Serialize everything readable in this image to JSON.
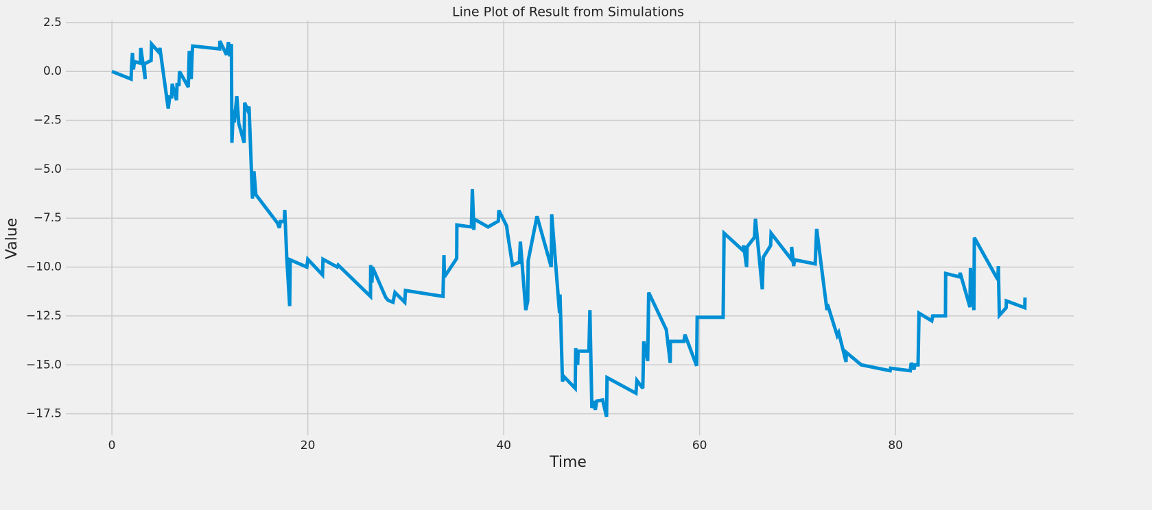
{
  "chart_data": {
    "type": "line",
    "title": "Line Plot of Result from Simulations",
    "xlabel": "Time",
    "ylabel": "Value",
    "color": "#008fd5",
    "grid": true,
    "xlim": [
      -4.7,
      98.2
    ],
    "ylim": [
      -18.6,
      2.6
    ],
    "xticks": [
      0,
      20,
      40,
      60,
      80
    ],
    "yticks": [
      2.5,
      {
        "value": 0,
        "label": "0.0"
      },
      {
        "value": -2.5,
        "label": "−2.5"
      },
      {
        "value": -5,
        "label": "−5.0"
      },
      {
        "value": -7.5,
        "label": "−7.5"
      },
      {
        "value": -10,
        "label": "−10.0"
      },
      {
        "value": -12.5,
        "label": "−12.5"
      },
      {
        "value": -15,
        "label": "−15.0"
      },
      {
        "value": -17.5,
        "label": "−17.5"
      }
    ],
    "x": [
      0,
      1.96,
      2.0,
      2.1,
      2.2,
      2.3,
      2.9,
      2.95,
      3.4,
      3.3,
      4.0,
      4.05,
      4.8,
      4.9,
      5.75,
      5.9,
      6.1,
      6.15,
      6.4,
      6.6,
      6.65,
      6.85,
      6.9,
      7.8,
      7.9,
      8.1,
      8.2,
      8.25,
      11.0,
      11.02,
      11.7,
      11.9,
      12.05,
      12.2,
      12.25,
      12.4,
      12.5,
      12.75,
      12.95,
      13.5,
      13.55,
      13.85,
      14.0,
      14.35,
      14.5,
      14.7,
      16.9,
      17.1,
      17.2,
      17.6,
      17.65,
      17.85,
      18.15,
      18.2,
      19.9,
      20.0,
      21.5,
      21.55,
      23.0,
      23.1,
      26.4,
      26.42,
      26.55,
      26.6,
      27.95,
      28.2,
      28.7,
      28.9,
      29.9,
      29.97,
      33.8,
      33.9,
      33.95,
      35.2,
      35.22,
      36.7,
      36.8,
      36.95,
      37.0,
      38.4,
      39.45,
      39.5,
      40.3,
      40.4,
      40.8,
      40.9,
      41.6,
      41.7,
      42.25,
      42.45,
      42.5,
      43.4,
      44.85,
      44.9,
      45.7,
      45.75,
      46.0,
      46.15,
      47.3,
      47.35,
      47.55,
      47.6,
      48.7,
      48.8,
      49.0,
      49.2,
      49.35,
      49.5,
      50.1,
      50.5,
      50.55,
      53.5,
      53.6,
      54.2,
      54.3,
      54.7,
      54.8,
      56.6,
      57.0,
      57.02,
      58.4,
      58.5,
      59.7,
      59.75,
      62.4,
      62.5,
      64.4,
      64.5,
      64.8,
      64.85,
      65.6,
      65.7,
      66.4,
      66.5,
      67.25,
      67.3,
      69.35,
      69.4,
      69.6,
      69.7,
      71.8,
      71.95,
      73.0,
      73.05,
      74.05,
      74.2,
      74.95,
      74.97,
      76.5,
      79.45,
      79.5,
      81.5,
      81.6,
      81.9,
      81.95,
      82.3,
      82.4,
      83.7,
      83.8,
      85.1,
      85.12,
      86.5,
      86.6,
      87.6,
      87.65,
      88.0,
      88.05,
      90.45,
      90.5,
      90.6,
      91.3,
      91.32,
      93.2,
      93.22
    ],
    "values": [
      0,
      -0.39,
      0.2,
      0.95,
      0.1,
      0.5,
      0.42,
      1.2,
      -0.39,
      0.38,
      0.56,
      1.4,
      0.98,
      1.2,
      -1.9,
      -1.3,
      -1.3,
      -0.63,
      -1.1,
      -1.47,
      -0.67,
      -0.67,
      0,
      -0.8,
      1.05,
      -0.39,
      1.0,
      1.3,
      1.15,
      1.55,
      0.85,
      1.5,
      0.77,
      1.4,
      -3.65,
      -1.96,
      -2.6,
      -1.26,
      -2.66,
      -3.65,
      -1.6,
      -1.96,
      -1.8,
      -6.5,
      -5.1,
      -6.3,
      -7.75,
      -8.0,
      -7.67,
      -7.67,
      -7.08,
      -9.5,
      -12.0,
      -9.63,
      -10.0,
      -9.6,
      -10.4,
      -9.6,
      -10.0,
      -9.9,
      -11.5,
      -9.9,
      -10.8,
      -10.0,
      -11.55,
      -11.7,
      -11.8,
      -11.3,
      -11.8,
      -11.2,
      -11.5,
      -9.39,
      -10.5,
      -9.56,
      -7.85,
      -7.95,
      -6.02,
      -8.1,
      -7.55,
      -7.95,
      -7.65,
      -7.1,
      -7.9,
      -8.3,
      -9.6,
      -9.9,
      -9.75,
      -8.7,
      -12.2,
      -11.75,
      -9.67,
      -7.4,
      -10.0,
      -7.3,
      -12.35,
      -11.4,
      -15.85,
      -15.6,
      -16.2,
      -14.15,
      -15.0,
      -14.3,
      -14.3,
      -12.2,
      -17.2,
      -16.85,
      -17.3,
      -16.85,
      -16.8,
      -17.65,
      -15.65,
      -16.45,
      -15.8,
      -16.2,
      -13.8,
      -14.8,
      -11.3,
      -13.2,
      -14.9,
      -13.8,
      -13.8,
      -13.45,
      -15.05,
      -12.57,
      -12.57,
      -8.27,
      -9.14,
      -8.9,
      -10.0,
      -8.97,
      -8.48,
      -7.53,
      -11.14,
      -9.5,
      -8.9,
      -8.27,
      -9.6,
      -8.97,
      -9.95,
      -9.63,
      -9.84,
      -8.05,
      -12.2,
      -11.9,
      -13.5,
      -13.35,
      -14.85,
      -14.36,
      -15.0,
      -15.3,
      -15.17,
      -15.3,
      -14.9,
      -15.24,
      -15.0,
      -15.0,
      -12.36,
      -12.75,
      -12.5,
      -12.5,
      -10.33,
      -10.5,
      -10.3,
      -12.05,
      -10.05,
      -12.2,
      -8.5,
      -10.65,
      -9.95,
      -12.47,
      -12.08,
      -11.73,
      -12.08,
      -11.56
    ]
  }
}
